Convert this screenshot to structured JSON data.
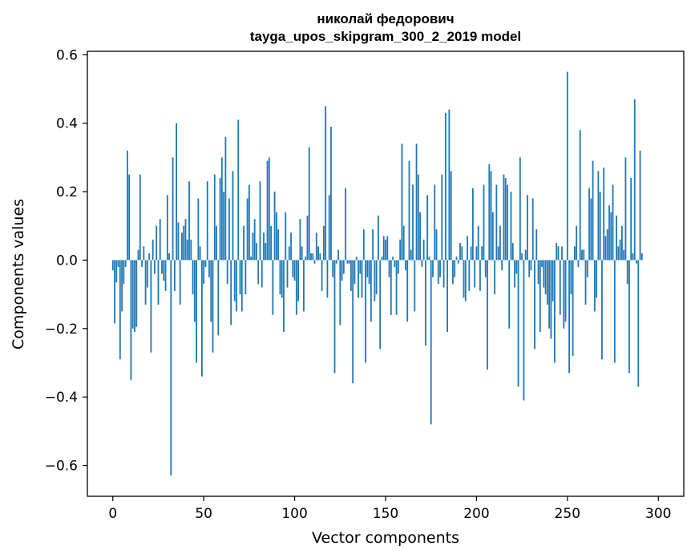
{
  "chart_data": {
    "type": "bar",
    "title_line1": "николай федорович",
    "title_line2": "tayga_upos_skipgram_300_2_2019 model",
    "xlabel": "Vector components",
    "ylabel": "Components values",
    "xlim": [
      -14,
      314
    ],
    "ylim": [
      -0.69,
      0.61
    ],
    "xticks": [
      0,
      50,
      100,
      150,
      200,
      250,
      300
    ],
    "yticks": [
      -0.6,
      -0.4,
      -0.2,
      0.0,
      0.2,
      0.4,
      0.6
    ],
    "ytick_labels": [
      "−0.6",
      "−0.4",
      "−0.2",
      "0.0",
      "0.2",
      "0.4",
      "0.6"
    ],
    "xtick_labels": [
      "0",
      "50",
      "100",
      "150",
      "200",
      "250",
      "300"
    ],
    "bar_color": "#1f77b4",
    "values": [
      -0.03,
      -0.185,
      -0.065,
      -0.02,
      -0.29,
      -0.15,
      -0.07,
      -0.02,
      0.32,
      0.25,
      -0.35,
      -0.2,
      -0.21,
      -0.195,
      0.03,
      0.25,
      -0.02,
      0.04,
      -0.13,
      -0.08,
      0.02,
      -0.27,
      0.06,
      -0.04,
      0.1,
      -0.13,
      0.12,
      -0.04,
      -0.06,
      -0.09,
      0.19,
      0.02,
      -0.63,
      0.3,
      -0.09,
      0.4,
      0.11,
      -0.13,
      0.08,
      0.1,
      0.12,
      0.06,
      0.23,
      0.06,
      -0.1,
      -0.18,
      -0.3,
      0.18,
      0.04,
      -0.34,
      -0.07,
      -0.02,
      0.23,
      -0.05,
      -0.18,
      -0.27,
      0.25,
      0.1,
      -0.22,
      0.24,
      0.3,
      0.2,
      0.36,
      -0.07,
      0.18,
      -0.19,
      0.26,
      -0.12,
      -0.15,
      0.41,
      -0.1,
      -0.15,
      0.1,
      -0.1,
      0.18,
      0.22,
      0.01,
      0.08,
      0.12,
      0.05,
      -0.07,
      0.23,
      -0.08,
      0.08,
      0.05,
      0.29,
      0.3,
      0.1,
      -0.16,
      0.2,
      0.14,
      0.09,
      -0.1,
      -0.11,
      -0.21,
      0.14,
      -0.08,
      0.04,
      0.08,
      -0.05,
      -0.06,
      -0.16,
      -0.12,
      0.12,
      0.04,
      -0.15,
      0.01,
      0.13,
      0.33,
      0.02,
      0.02,
      -0.01,
      0.08,
      0.04,
      0.02,
      -0.09,
      0.1,
      0.45,
      -0.11,
      0.19,
      0.39,
      -0.05,
      -0.33,
      -0.01,
      0.03,
      -0.19,
      -0.06,
      -0.04,
      0.21,
      -0.01,
      -0.01,
      -0.09,
      -0.36,
      -0.07,
      0.01,
      -0.11,
      -0.04,
      -0.11,
      0.09,
      -0.3,
      -0.05,
      -0.07,
      -0.18,
      0.09,
      -0.12,
      -0.1,
      0.13,
      -0.26,
      0.01,
      0.07,
      0.06,
      0.07,
      -0.05,
      -0.16,
      0.01,
      -0.02,
      -0.16,
      -0.04,
      0.06,
      0.34,
      0.1,
      -0.03,
      -0.18,
      0.29,
      0.03,
      0.22,
      -0.15,
      0.34,
      0.25,
      0.14,
      -0.02,
      0.06,
      -0.25,
      0.19,
      0.01,
      -0.48,
      -0.05,
      0.22,
      0.09,
      -0.07,
      -0.05,
      0.25,
      -0.08,
      0.43,
      -0.21,
      0.44,
      0.26,
      -0.07,
      -0.05,
      0.01,
      -0.01,
      0.05,
      0.04,
      -0.11,
      -0.12,
      0.07,
      -0.09,
      0.04,
      0.21,
      -0.08,
      0.04,
      0.1,
      -0.09,
      0.04,
      0.22,
      -0.05,
      -0.32,
      0.28,
      0.26,
      0.14,
      -0.1,
      0.22,
      0.04,
      0.1,
      -0.03,
      0.25,
      0.24,
      0.22,
      -0.2,
      0.2,
      0.05,
      -0.08,
      -0.04,
      -0.37,
      0.3,
      0.02,
      -0.41,
      0.03,
      0.19,
      -0.05,
      -0.03,
      0.18,
      -0.26,
      0.09,
      -0.07,
      -0.21,
      -0.02,
      -0.08,
      -0.1,
      -0.13,
      -0.2,
      -0.23,
      -0.12,
      -0.3,
      0.05,
      0.04,
      -0.16,
      0.04,
      -0.2,
      -0.18,
      0.55,
      -0.33,
      -0.1,
      -0.28,
      0.04,
      0.1,
      -0.02,
      0.38,
      0.03,
      0.03,
      -0.13,
      -0.05,
      0.21,
      0.18,
      0.29,
      -0.15,
      -0.11,
      0.26,
      0.2,
      -0.29,
      0.27,
      0.07,
      0.09,
      0.16,
      0.14,
      0.22,
      -0.3,
      0.13,
      0.04,
      0.06,
      0.1,
      0.03,
      0.3,
      -0.07,
      -0.33,
      0.24,
      0.02,
      0.47,
      -0.01,
      -0.37,
      0.32,
      0.02
    ]
  }
}
